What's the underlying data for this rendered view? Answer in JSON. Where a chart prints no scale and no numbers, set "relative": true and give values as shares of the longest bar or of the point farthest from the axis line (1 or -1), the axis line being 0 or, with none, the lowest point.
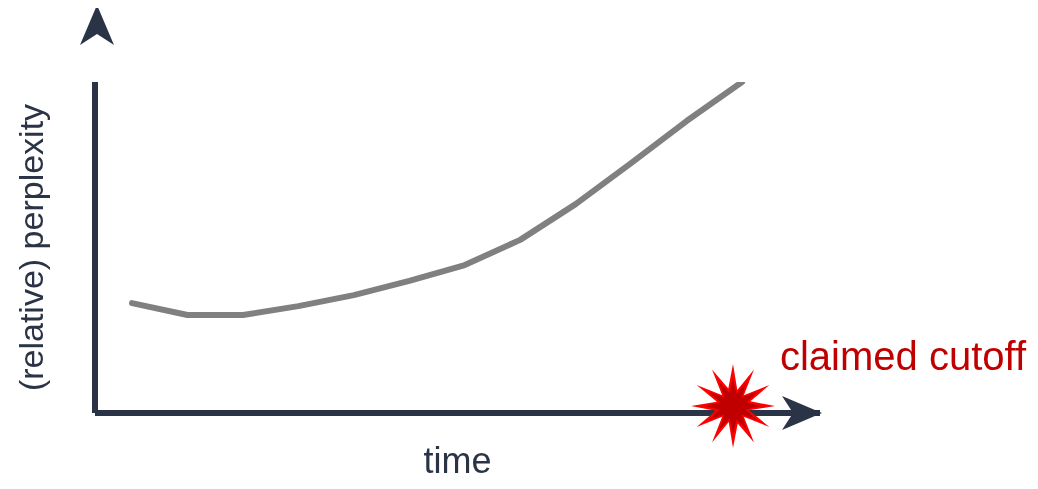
{
  "chart_data": {
    "type": "line",
    "relative": true,
    "xlabel": "time",
    "ylabel": "(relative) perplexity",
    "categories": [
      null,
      null,
      null,
      null,
      null,
      null,
      null,
      null,
      null,
      null,
      null,
      null
    ],
    "series": [
      {
        "color": "#808080",
        "values": [
          0.332,
          0.296,
          0.296,
          0.323,
          0.356,
          0.399,
          0.447,
          0.523,
          0.631,
          0.755,
          0.882,
          1
        ]
      }
    ],
    "annotations": [
      "claimed cutoff"
    ],
    "marker": "none",
    "grid": false,
    "legend": false
  }
}
